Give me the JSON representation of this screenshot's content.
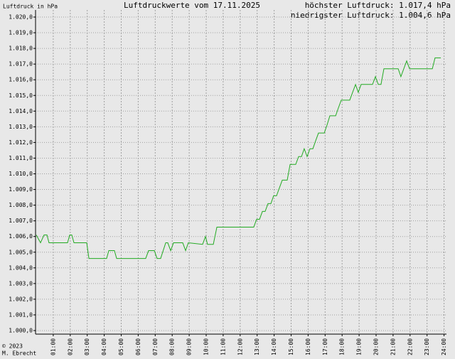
{
  "chart_data": {
    "type": "line",
    "title": "Luftdruckwerte vom 17.11.2025",
    "y_axis_label": "Luftdruck in hPa",
    "annotations": [
      "höchster Luftdruck: 1.017,4 hPa",
      "niedrigster Luftdruck: 1.004,6 hPa"
    ],
    "footer": [
      "© 2023",
      "M. Ebrecht"
    ],
    "color": "#22aa22",
    "grid": true,
    "x": [
      0,
      0.25,
      0.46,
      0.63,
      0.75,
      1.84,
      1.97,
      2.09,
      2.22,
      2.97,
      3.1,
      4.14,
      4.27,
      4.6,
      4.73,
      6.44,
      6.61,
      6.95,
      7.11,
      7.32,
      7.62,
      7.74,
      7.91,
      8.08,
      8.62,
      8.79,
      8.95,
      9.79,
      9.96,
      10.08,
      10.42,
      10.63,
      12.8,
      12.97,
      13.14,
      13.31,
      13.47,
      13.64,
      13.81,
      13.97,
      14.14,
      14.31,
      14.48,
      14.77,
      14.94,
      15.27,
      15.44,
      15.61,
      15.77,
      15.94,
      16.11,
      16.28,
      16.44,
      16.61,
      16.95,
      17.11,
      17.28,
      17.62,
      17.78,
      17.95,
      18.45,
      18.62,
      18.79,
      18.95,
      19.12,
      19.79,
      19.96,
      20.13,
      20.29,
      20.46,
      21.3,
      21.46,
      21.8,
      21.97,
      23.31,
      23.47,
      23.81
    ],
    "values": [
      1006.1,
      1005.6,
      1006.1,
      1006.1,
      1005.6,
      1005.6,
      1006.1,
      1006.1,
      1005.6,
      1005.6,
      1004.6,
      1004.6,
      1005.1,
      1005.1,
      1004.6,
      1004.6,
      1005.1,
      1005.1,
      1004.6,
      1004.6,
      1005.6,
      1005.6,
      1005.1,
      1005.6,
      1005.6,
      1005.1,
      1005.6,
      1005.5,
      1006.0,
      1005.5,
      1005.5,
      1006.6,
      1006.6,
      1007.1,
      1007.1,
      1007.6,
      1007.6,
      1008.1,
      1008.1,
      1008.6,
      1008.6,
      1009.1,
      1009.6,
      1009.6,
      1010.6,
      1010.6,
      1011.1,
      1011.1,
      1011.6,
      1011.1,
      1011.6,
      1011.6,
      1012.1,
      1012.6,
      1012.6,
      1013.1,
      1013.7,
      1013.7,
      1014.2,
      1014.7,
      1014.7,
      1015.2,
      1015.7,
      1015.2,
      1015.7,
      1015.7,
      1016.2,
      1015.7,
      1015.7,
      1016.7,
      1016.7,
      1016.2,
      1017.2,
      1016.7,
      1016.7,
      1017.4,
      1017.4
    ],
    "xlim": [
      0,
      24
    ],
    "xticks": [
      {
        "value": 1,
        "label": "01:00"
      },
      {
        "value": 2,
        "label": "02:00"
      },
      {
        "value": 3,
        "label": "03:00"
      },
      {
        "value": 4,
        "label": "04:00"
      },
      {
        "value": 5,
        "label": "05:00"
      },
      {
        "value": 6,
        "label": "06:00"
      },
      {
        "value": 7,
        "label": "07:00"
      },
      {
        "value": 8,
        "label": "08:00"
      },
      {
        "value": 9,
        "label": "09:00"
      },
      {
        "value": 10,
        "label": "10:00"
      },
      {
        "value": 11,
        "label": "11:00"
      },
      {
        "value": 12,
        "label": "12:00"
      },
      {
        "value": 13,
        "label": "13:00"
      },
      {
        "value": 14,
        "label": "14:00"
      },
      {
        "value": 15,
        "label": "15:00"
      },
      {
        "value": 16,
        "label": "16:00"
      },
      {
        "value": 17,
        "label": "17:00"
      },
      {
        "value": 18,
        "label": "18:00"
      },
      {
        "value": 19,
        "label": "19:00"
      },
      {
        "value": 20,
        "label": "20:00"
      },
      {
        "value": 21,
        "label": "21:00"
      },
      {
        "value": 22,
        "label": "22:00"
      },
      {
        "value": 23,
        "label": "23:00"
      },
      {
        "value": 24,
        "label": "24:00"
      }
    ],
    "ylim": [
      1000,
      1020
    ],
    "yticks": [
      {
        "value": 1000,
        "label": "1.000,0"
      },
      {
        "value": 1001,
        "label": "1.001,0"
      },
      {
        "value": 1002,
        "label": "1.002,0"
      },
      {
        "value": 1003,
        "label": "1.003,0"
      },
      {
        "value": 1004,
        "label": "1.004,0"
      },
      {
        "value": 1005,
        "label": "1.005,0"
      },
      {
        "value": 1006,
        "label": "1.006,0"
      },
      {
        "value": 1007,
        "label": "1.007,0"
      },
      {
        "value": 1008,
        "label": "1.008,0"
      },
      {
        "value": 1009,
        "label": "1.009,0"
      },
      {
        "value": 1010,
        "label": "1.010,0"
      },
      {
        "value": 1011,
        "label": "1.011,0"
      },
      {
        "value": 1012,
        "label": "1.012,0"
      },
      {
        "value": 1013,
        "label": "1.013,0"
      },
      {
        "value": 1014,
        "label": "1.014,0"
      },
      {
        "value": 1015,
        "label": "1.015,0"
      },
      {
        "value": 1016,
        "label": "1.016,0"
      },
      {
        "value": 1017,
        "label": "1.017,0"
      },
      {
        "value": 1018,
        "label": "1.018,0"
      },
      {
        "value": 1019,
        "label": "1.019,0"
      },
      {
        "value": 1020,
        "label": "1.020,0"
      }
    ]
  }
}
